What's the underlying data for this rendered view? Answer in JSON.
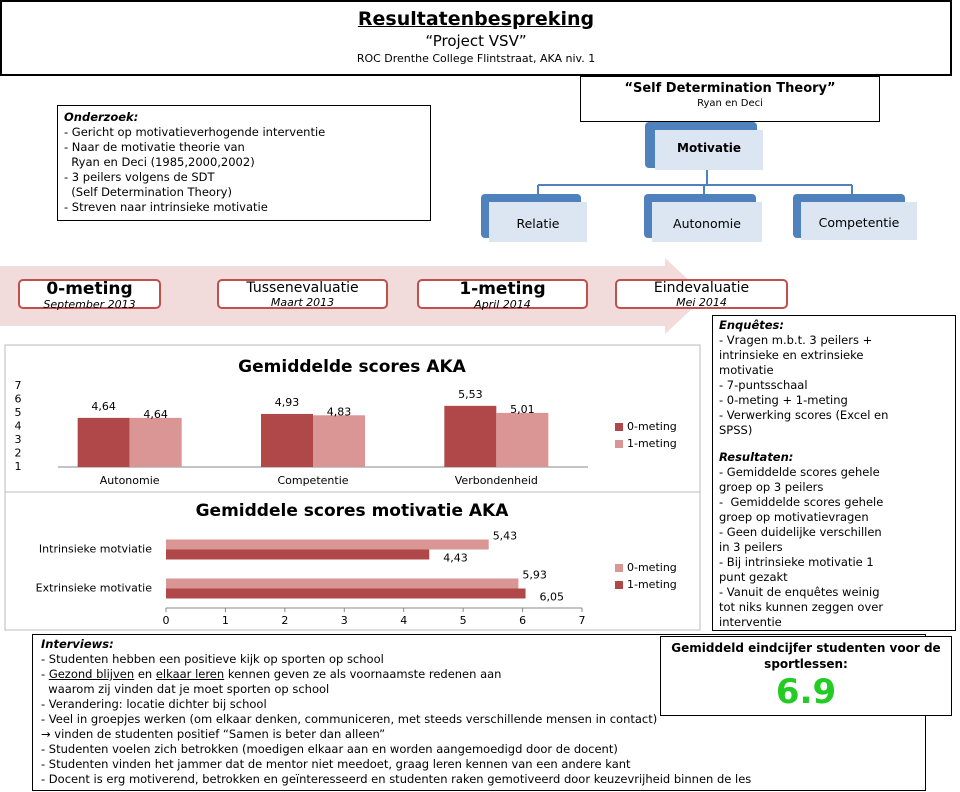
{
  "header": {
    "title": "Resultatenbespreking",
    "subtitle": "“Project VSV”",
    "location": "ROC Drenthe College Flintstraat, AKA niv. 1"
  },
  "research": {
    "heading": "Onderzoek:",
    "items": [
      "- Gericht op motivatieverhogende interventie",
      "- Naar de motivatie theorie van",
      "  Ryan en Deci (1985,2000,2002)",
      "- 3 peilers volgens de SDT",
      "  (Self Determination Theory)",
      "- Streven naar intrinsieke motivatie"
    ]
  },
  "theory": {
    "title": "“Self Determination Theory”",
    "authors": "Ryan en Deci",
    "root": "Motivatie",
    "children": [
      "Relatie",
      "Autonomie",
      "Competentie"
    ]
  },
  "timeline": [
    {
      "label": "0-meting",
      "date": "September 2013"
    },
    {
      "label": "Tussenevaluatie",
      "date": "Maart 2013"
    },
    {
      "label": "1-meting",
      "date": "April 2014"
    },
    {
      "label": "Eindevaluatie",
      "date": "Mei 2014"
    }
  ],
  "chart_data": [
    {
      "type": "bar",
      "title": "Gemiddelde scores AKA",
      "categories": [
        "Autonomie",
        "Competentie",
        "Verbondenheid"
      ],
      "series": [
        {
          "name": "0-meting",
          "color": "#b0484a",
          "values": [
            4.64,
            4.93,
            5.53
          ],
          "value_labels": [
            "4,64",
            "4,93",
            "5,53"
          ]
        },
        {
          "name": "1-meting",
          "color": "#d99694",
          "values": [
            4.64,
            4.83,
            5.01
          ],
          "value_labels": [
            "4,64",
            "4,83",
            "5,01"
          ]
        }
      ],
      "ylim": [
        1,
        7
      ],
      "yticks": [
        1,
        2,
        3,
        4,
        5,
        6,
        7
      ]
    },
    {
      "type": "bar",
      "horizontal": true,
      "title": "Gemiddele scores motivatie AKA",
      "categories": [
        "Intrinsieke motviatie",
        "Extrinsieke motivatie"
      ],
      "series": [
        {
          "name": "0-meting",
          "color": "#d99694",
          "values": [
            5.43,
            5.93
          ],
          "value_labels": [
            "5,43",
            "5,93"
          ]
        },
        {
          "name": "1-meting",
          "color": "#b0484a",
          "values": [
            4.43,
            6.05
          ],
          "value_labels": [
            "4,43",
            "6,05"
          ]
        }
      ],
      "xlim": [
        0,
        7
      ],
      "xticks": [
        0,
        1,
        2,
        3,
        4,
        5,
        6,
        7
      ]
    }
  ],
  "surveys": {
    "heading": "Enquêtes:",
    "items": [
      "- Vragen m.b.t. 3 peilers +",
      "intrinsieke en extrinsieke",
      "motivatie",
      "- 7-puntsschaal",
      "- 0-meting + 1-meting",
      "- Verwerking scores (Excel en",
      "SPSS)"
    ],
    "results_heading": "Resultaten:",
    "results": [
      "- Gemiddelde scores gehele",
      "groep op 3 peilers",
      "-  Gemiddelde scores gehele",
      "groep op motivatievragen",
      "- Geen duidelijke verschillen",
      "in 3 peilers",
      "- Bij intrinsieke motivatie 1",
      "punt gezakt",
      "- Vanuit de enquêtes weinig",
      "tot niks kunnen zeggen over",
      "interventie"
    ]
  },
  "interviews": {
    "heading": "Interviews:",
    "items": [
      "- Studenten hebben een positieve kijk op sporten op school",
      [
        "- ",
        "Gezond blijven",
        " en ",
        "elkaar leren",
        " kennen geven ze als voornaamste redenen aan"
      ],
      "  waarom zij vinden dat je moet sporten op school",
      "- Verandering: locatie dichter bij school",
      "- Veel in groepjes werken (om elkaar denken, communiceren, met steeds verschillende mensen in contact)",
      "→ vinden de studenten positief “Samen is beter dan alleen”",
      "- Studenten voelen zich betrokken (moedigen elkaar aan en worden aangemoedigd door de docent)",
      "- Studenten vinden het jammer dat de mentor niet meedoet, graag leren kennen van een andere kant",
      "- Docent is erg motiverend, betrokken en geïnteresseerd en studenten raken gemotiveerd door keuzevrijheid binnen de les"
    ]
  },
  "grade": {
    "label": "Gemiddeld eindcijfer studenten voor de sportlessen:",
    "value": "6.9"
  }
}
